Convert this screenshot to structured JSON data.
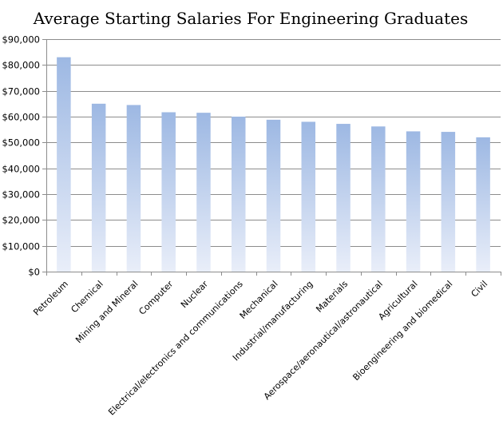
{
  "chart_data": {
    "type": "bar",
    "title": "Average Starting Salaries For Engineering Graduates",
    "xlabel": "",
    "ylabel": "",
    "ylim": [
      0,
      90000
    ],
    "y_ticks": [
      0,
      10000,
      20000,
      30000,
      40000,
      50000,
      60000,
      70000,
      80000,
      90000
    ],
    "y_tick_labels": [
      "$0",
      "$10,000",
      "$20,000",
      "$30,000",
      "$40,000",
      "$50,000",
      "$60,000",
      "$70,000",
      "$80,000",
      "$90,000"
    ],
    "categories": [
      "Petroleum",
      "Chemical",
      "Mining and Mineral",
      "Computer",
      "Nuclear",
      "Electrical/electronics and communications",
      "Mechanical",
      "Industrial/manufacturing",
      "Materials",
      "Aerospace/aeronautical/astronautical",
      "Agricultural",
      "Bioengineering and biomedical",
      "Civil"
    ],
    "values": [
      83000,
      65000,
      64500,
      61700,
      61500,
      60000,
      58800,
      58000,
      57200,
      56200,
      54300,
      54100,
      52000
    ],
    "grid": true,
    "legend": "none",
    "colors": {
      "bar_top": "#9db8e3",
      "bar_bottom": "#e9eef9",
      "grid": "#8c8c8c",
      "axis": "#8c8c8c"
    }
  }
}
